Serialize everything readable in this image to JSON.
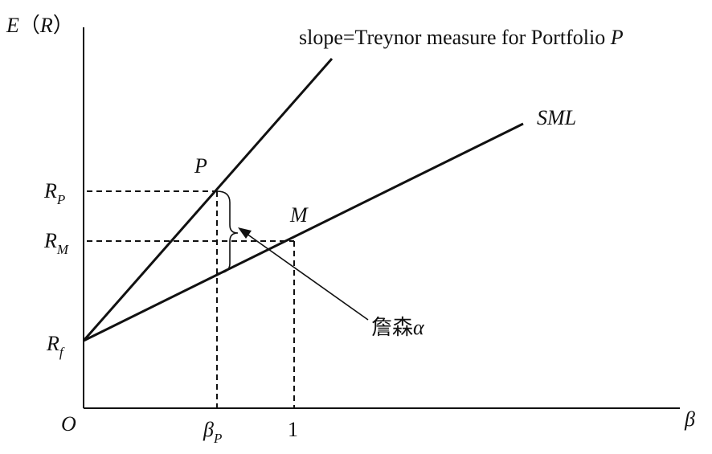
{
  "axes": {
    "y_label_main": "E",
    "y_label_paren_open": "（",
    "y_label_var": "R",
    "y_label_paren_close": "）",
    "x_label": "β",
    "origin": "O"
  },
  "y_ticks": {
    "rp_main": "R",
    "rp_sub": "P",
    "rm_main": "R",
    "rm_sub": "M",
    "rf_main": "R",
    "rf_sub": "f"
  },
  "x_ticks": {
    "beta_p_main": "β",
    "beta_p_sub": "P",
    "one": "1"
  },
  "lines": {
    "portfolio_label_text": "slope=Treynor measure for Portfolio ",
    "portfolio_label_var": "P",
    "sml_label": "SML"
  },
  "points": {
    "p_label": "P",
    "m_label": "M"
  },
  "annotation": {
    "alpha_text": "詹森",
    "alpha_symbol": "α"
  }
}
